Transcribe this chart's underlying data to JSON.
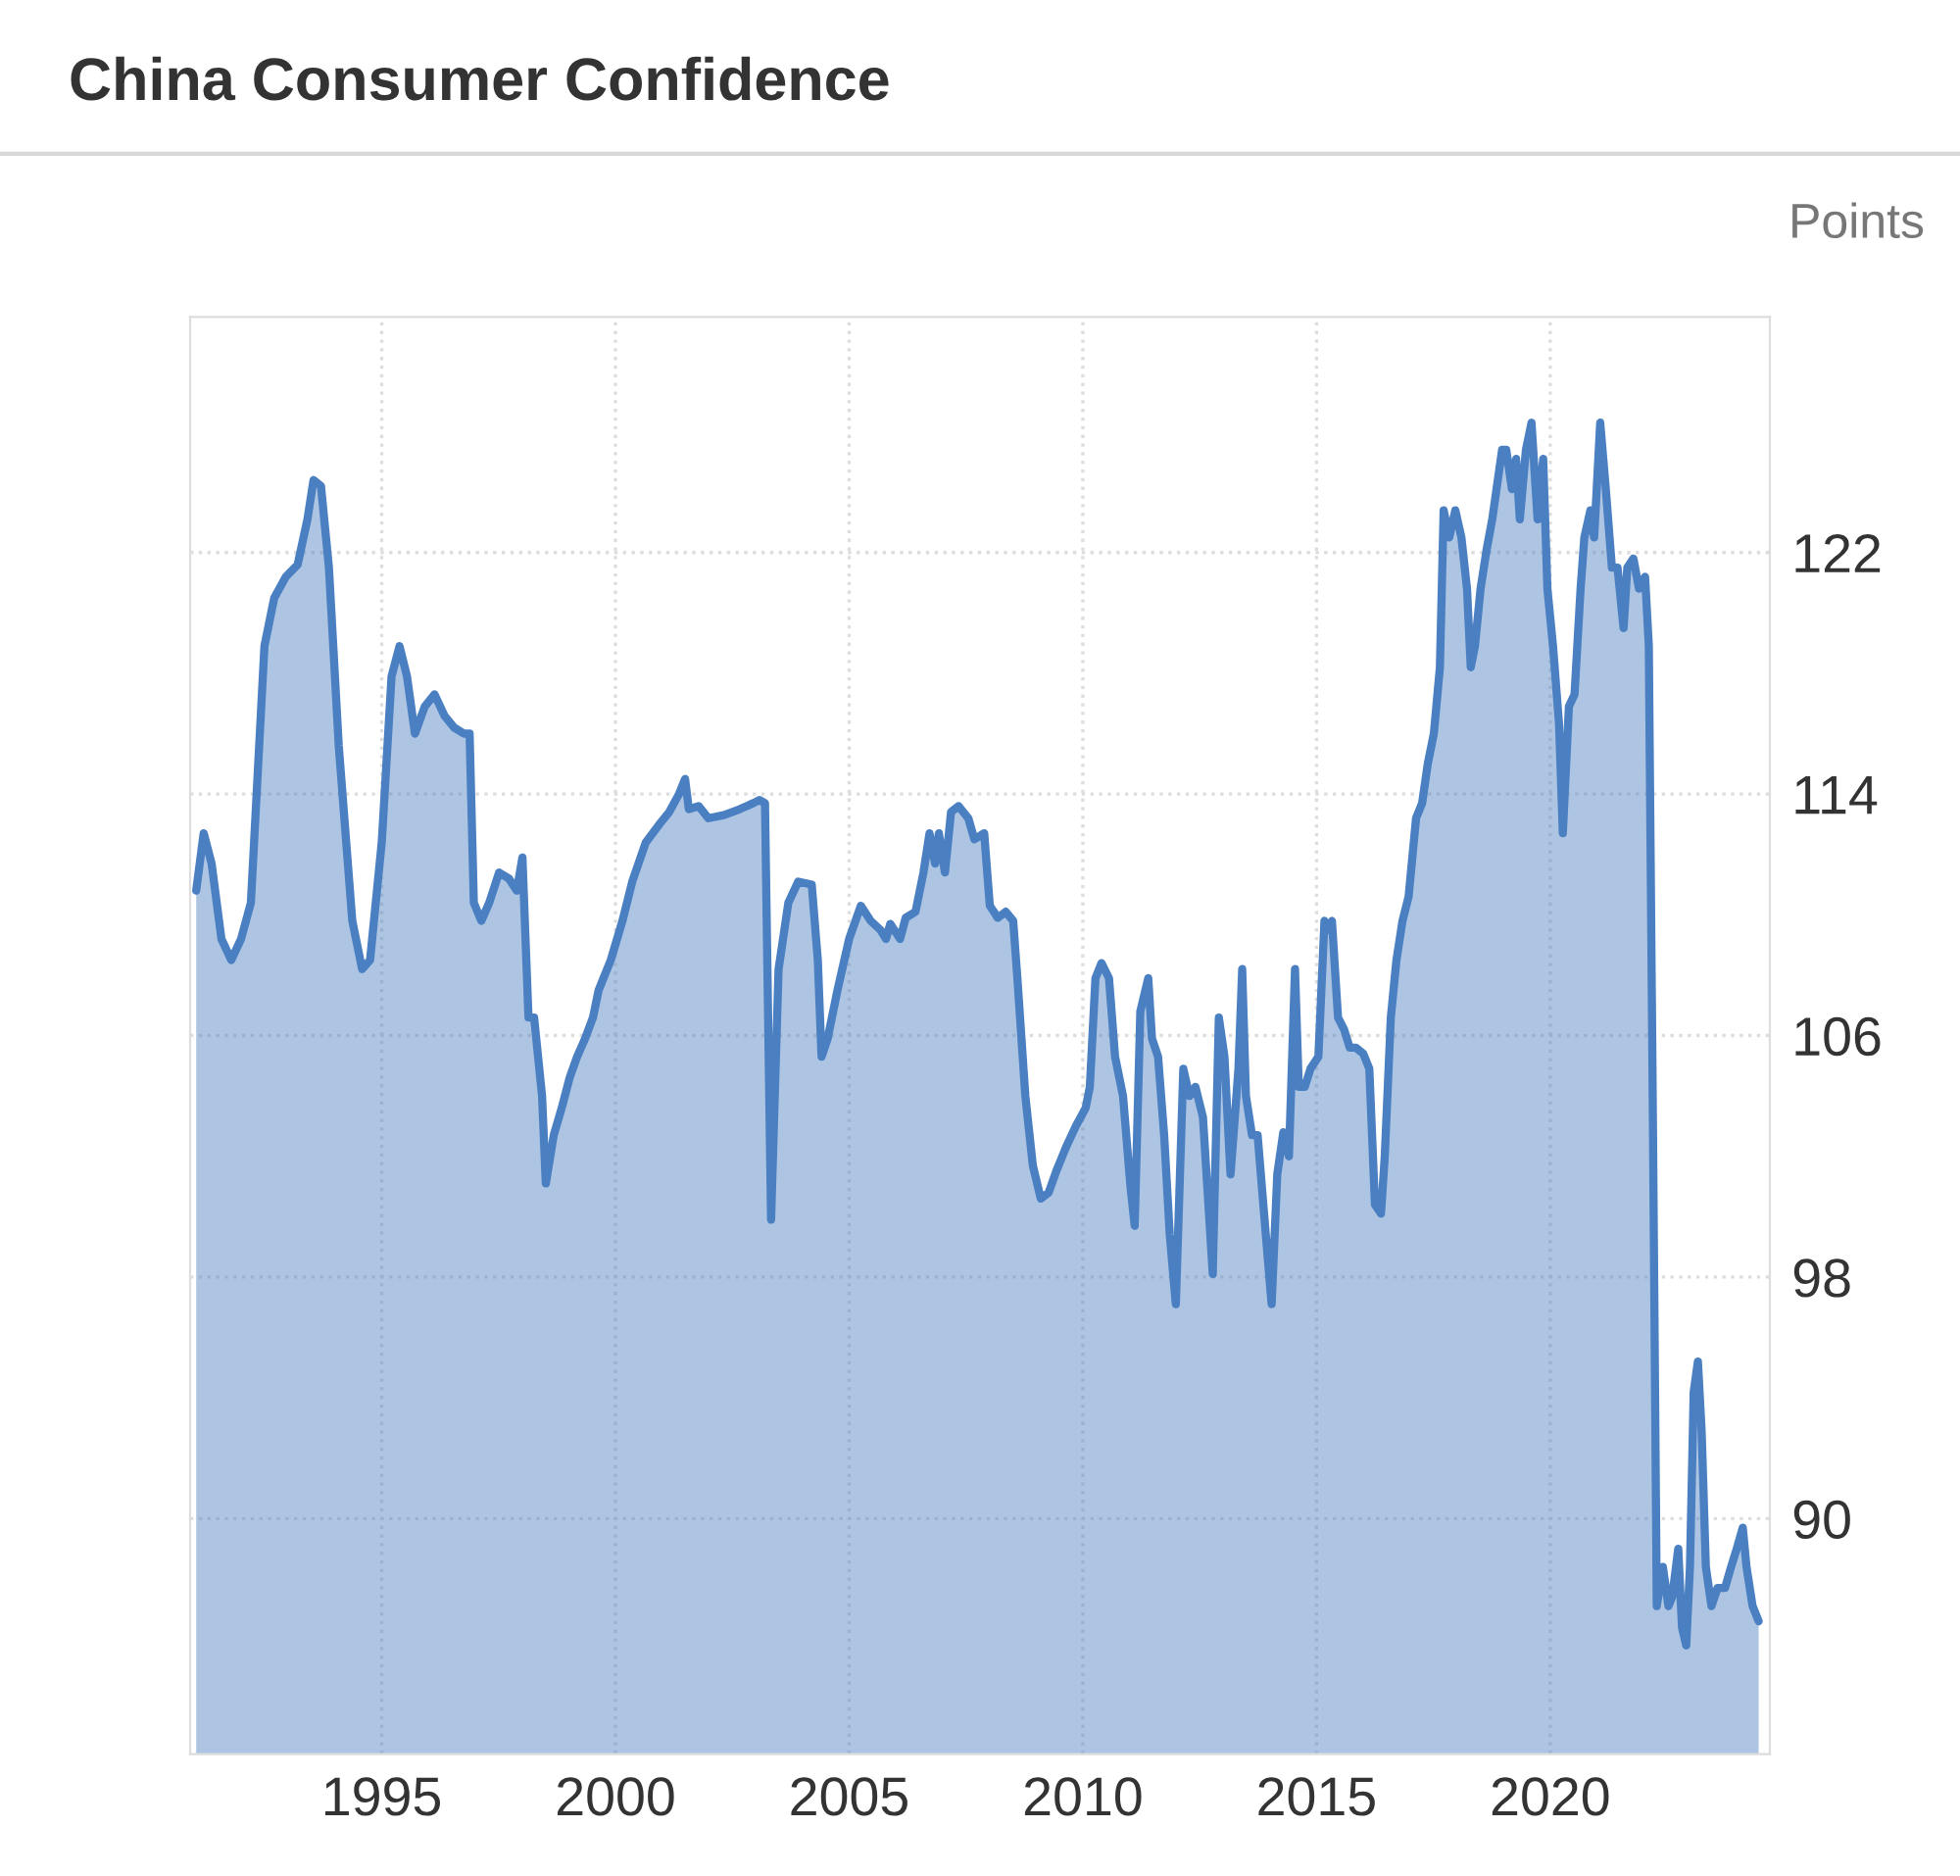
{
  "chart_data": {
    "type": "area",
    "title": "China Consumer Confidence",
    "ylabel": "Points",
    "x": [
      1991.03,
      1991.19,
      1991.36,
      1991.57,
      1991.78,
      1991.99,
      1992.2,
      1992.49,
      1992.7,
      1992.95,
      1993.2,
      1993.41,
      1993.54,
      1993.7,
      1993.87,
      1994.08,
      1994.37,
      1994.58,
      1994.75,
      1995.0,
      1995.21,
      1995.38,
      1995.54,
      1995.71,
      1995.92,
      1996.13,
      1996.34,
      1996.55,
      1996.76,
      1996.88,
      1996.97,
      1997.13,
      1997.3,
      1997.51,
      1997.72,
      1997.89,
      1998.01,
      1998.14,
      1998.26,
      1998.43,
      1998.51,
      1998.68,
      1998.85,
      1999.02,
      1999.18,
      1999.35,
      1999.52,
      1999.64,
      1999.9,
      2000.15,
      2000.36,
      2000.65,
      2000.94,
      2001.15,
      2001.36,
      2001.49,
      2001.57,
      2001.78,
      2001.99,
      2002.32,
      2002.66,
      2002.95,
      2003.08,
      2003.2,
      2003.33,
      2003.49,
      2003.7,
      2003.91,
      2004.2,
      2004.33,
      2004.41,
      2004.54,
      2004.75,
      2005.0,
      2005.25,
      2005.46,
      2005.67,
      2005.79,
      2005.88,
      2006.09,
      2006.21,
      2006.42,
      2006.59,
      2006.72,
      2006.84,
      2006.92,
      2007.05,
      2007.18,
      2007.34,
      2007.55,
      2007.68,
      2007.89,
      2008.01,
      2008.18,
      2008.35,
      2008.51,
      2008.6,
      2008.77,
      2008.93,
      2009.1,
      2009.27,
      2009.43,
      2009.64,
      2009.85,
      2010.06,
      2010.15,
      2010.27,
      2010.4,
      2010.56,
      2010.69,
      2010.86,
      2011.02,
      2011.11,
      2011.23,
      2011.4,
      2011.48,
      2011.61,
      2011.74,
      2011.86,
      2011.99,
      2012.15,
      2012.28,
      2012.41,
      2012.57,
      2012.7,
      2012.78,
      2012.91,
      2013.03,
      2013.16,
      2013.33,
      2013.41,
      2013.49,
      2013.62,
      2013.74,
      2013.91,
      2014.04,
      2014.16,
      2014.29,
      2014.41,
      2014.54,
      2014.62,
      2014.75,
      2014.87,
      2015.04,
      2015.17,
      2015.25,
      2015.33,
      2015.46,
      2015.59,
      2015.71,
      2015.84,
      2016.0,
      2016.13,
      2016.25,
      2016.38,
      2016.46,
      2016.59,
      2016.71,
      2016.84,
      2016.97,
      2017.13,
      2017.26,
      2017.38,
      2017.51,
      2017.64,
      2017.72,
      2017.84,
      2017.97,
      2018.1,
      2018.22,
      2018.3,
      2018.39,
      2018.51,
      2018.64,
      2018.76,
      2018.97,
      2019.06,
      2019.18,
      2019.27,
      2019.35,
      2019.48,
      2019.6,
      2019.73,
      2019.85,
      2019.94,
      2020.06,
      2020.19,
      2020.27,
      2020.4,
      2020.52,
      2020.65,
      2020.73,
      2020.86,
      2020.94,
      2021.07,
      2021.19,
      2021.32,
      2021.44,
      2021.57,
      2021.65,
      2021.78,
      2021.9,
      2022.03,
      2022.11,
      2022.2,
      2022.28,
      2022.41,
      2022.53,
      2022.61,
      2022.74,
      2022.82,
      2022.91,
      2022.99,
      2023.07,
      2023.16,
      2023.24,
      2023.33,
      2023.45,
      2023.58,
      2023.74,
      2023.87,
      2023.99,
      2024.12,
      2024.2,
      2024.33,
      2024.46
    ],
    "series": [
      {
        "color": "#4a7fc1",
        "values": [
          110.8,
          112.7,
          111.7,
          109.2,
          108.5,
          109.2,
          110.4,
          118.9,
          120.5,
          121.2,
          121.6,
          123.1,
          124.4,
          124.2,
          121.5,
          115.6,
          109.8,
          108.2,
          108.5,
          112.4,
          117.9,
          118.9,
          117.9,
          116.0,
          116.9,
          117.3,
          116.6,
          116.2,
          116.0,
          116.0,
          110.4,
          109.8,
          110.4,
          111.4,
          111.2,
          110.8,
          111.9,
          106.6,
          106.6,
          104.0,
          101.1,
          102.7,
          103.6,
          104.6,
          105.3,
          105.9,
          106.6,
          107.5,
          108.5,
          109.8,
          111.1,
          112.4,
          113.0,
          113.4,
          114.0,
          114.5,
          113.5,
          113.6,
          113.2,
          113.3,
          113.5,
          113.7,
          113.8,
          113.7,
          99.9,
          108.2,
          110.4,
          111.1,
          111.0,
          108.5,
          105.3,
          105.9,
          107.5,
          109.2,
          110.3,
          109.8,
          109.5,
          109.2,
          109.7,
          109.2,
          109.9,
          110.1,
          111.4,
          112.7,
          111.7,
          112.7,
          111.4,
          113.4,
          113.6,
          113.2,
          112.5,
          112.7,
          110.3,
          109.9,
          110.1,
          109.8,
          107.9,
          104.0,
          101.7,
          100.6,
          100.8,
          101.5,
          102.3,
          103.0,
          103.6,
          104.3,
          107.9,
          108.4,
          107.9,
          105.3,
          104.0,
          101.0,
          99.7,
          106.8,
          107.9,
          105.9,
          105.3,
          102.7,
          99.4,
          97.1,
          104.9,
          104.0,
          104.3,
          103.3,
          100.1,
          98.1,
          106.6,
          105.3,
          101.4,
          104.9,
          108.2,
          104.0,
          102.7,
          102.7,
          99.5,
          97.1,
          101.4,
          102.8,
          102.0,
          108.2,
          104.3,
          104.3,
          104.9,
          105.3,
          109.8,
          109.5,
          109.8,
          106.6,
          106.2,
          105.6,
          105.6,
          105.4,
          104.9,
          100.4,
          100.1,
          102.0,
          106.6,
          108.5,
          109.8,
          110.6,
          113.2,
          113.7,
          115.0,
          116.0,
          118.2,
          123.4,
          122.5,
          123.4,
          122.5,
          120.8,
          118.2,
          118.9,
          120.8,
          122.1,
          123.1,
          125.4,
          125.4,
          124.1,
          125.1,
          123.1,
          125.4,
          126.3,
          123.1,
          125.1,
          120.8,
          118.9,
          116.3,
          112.7,
          116.9,
          117.3,
          120.8,
          122.5,
          123.4,
          122.5,
          126.3,
          124.1,
          121.5,
          121.5,
          119.5,
          121.5,
          121.8,
          120.8,
          121.2,
          118.9,
          102.7,
          87.1,
          88.4,
          87.1,
          87.4,
          89.0,
          86.4,
          85.8,
          88.4,
          94.2,
          95.2,
          92.9,
          88.4,
          87.1,
          87.7,
          87.7,
          88.4,
          89.0,
          89.7,
          88.4,
          87.1,
          86.6
        ]
      }
    ],
    "xlim": [
      1990.9,
      2024.7
    ],
    "ylim": [
      82.2,
      129.8
    ],
    "xticks": [
      1995,
      2000,
      2005,
      2010,
      2015,
      2020
    ],
    "yticks": [
      90,
      98,
      106,
      114,
      122
    ],
    "grid": true
  }
}
